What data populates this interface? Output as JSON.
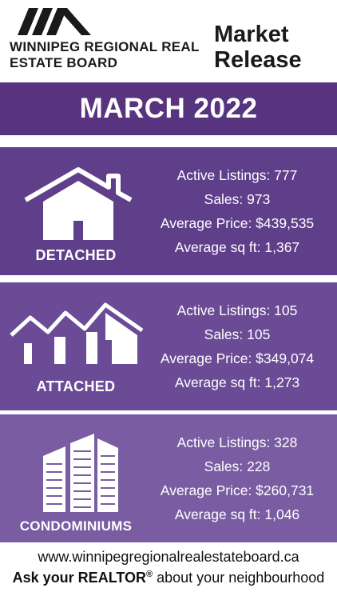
{
  "header": {
    "logo_icon": "roof-logo-icon",
    "board_name": "WINNIPEG REGIONAL REAL ESTATE BOARD",
    "release_line1": "Market",
    "release_line2": "Release"
  },
  "month_title": "MARCH 2022",
  "colors": {
    "month_bar": "#58337f",
    "detached_bg": "#5f3e8a",
    "attached_bg": "#6b4b95",
    "condo_bg": "#7a5ca3"
  },
  "sections": {
    "detached": {
      "icon": "house-icon",
      "label": "DETACHED",
      "active_listings": "Active Listings: 777",
      "sales": "Sales: 973",
      "average_price": "Average Price: $439,535",
      "average_sqft": "Average sq ft: 1,367"
    },
    "attached": {
      "icon": "townhouses-icon",
      "label": "ATTACHED",
      "active_listings": "Active Listings: 105",
      "sales": "Sales: 105",
      "average_price": "Average Price: $349,074",
      "average_sqft": "Average sq ft: 1,273"
    },
    "condo": {
      "icon": "condo-towers-icon",
      "label": "CONDOMINIUMS",
      "active_listings": "Active Listings: 328",
      "sales": "Sales: 228",
      "average_price": "Average Price: $260,731",
      "average_sqft": "Average sq ft: 1,046"
    }
  },
  "footer": {
    "website": "www.winnipegregionalrealestateboard.ca",
    "ask_bold": "Ask your REALTOR",
    "ask_reg": "®",
    "ask_rest": " about your neighbourhood"
  }
}
